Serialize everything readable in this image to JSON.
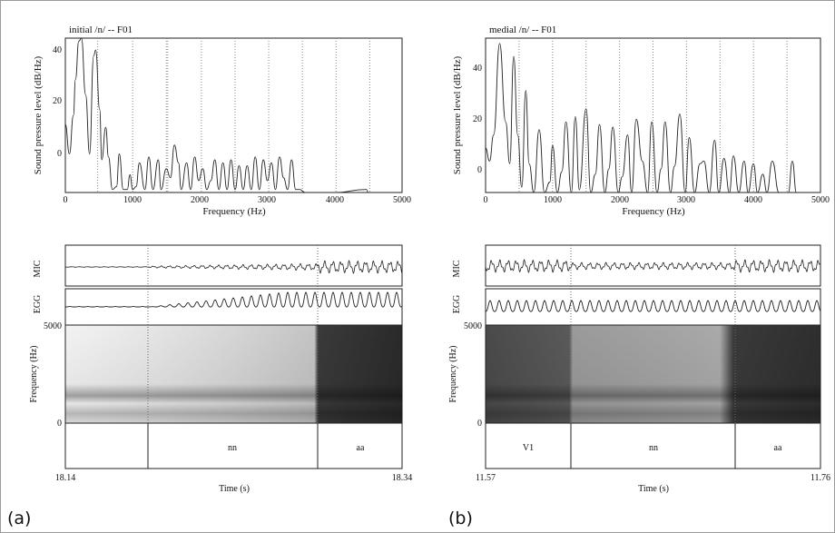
{
  "panels": [
    {
      "letter": "(a)",
      "spectrum": {
        "title": "initial /n/ -- F01",
        "xlabel": "Frequency (Hz)",
        "ylabel": "Sound pressure level (dB/Hz)",
        "xlim": [
          0,
          5000
        ],
        "ylim": [
          -8,
          44
        ],
        "xticks": [
          "0",
          "1000",
          "2000",
          "3000",
          "4000",
          "5000"
        ],
        "yticks": [
          "0",
          "20",
          "40"
        ]
      },
      "signals": {
        "mic_label": "MIC",
        "egg_label": "EGG",
        "freq_ylabel": "Frequency (Hz)",
        "freq_max": "5000",
        "freq_min": "0",
        "time_label": "Time (s)",
        "t_start": "18.14",
        "t_end": "18.34",
        "segments": [
          "",
          "nn",
          "aa"
        ]
      }
    },
    {
      "letter": "(b)",
      "spectrum": {
        "title": "medial /n/ -- F01",
        "xlabel": "Frequency (Hz)",
        "ylabel": "Sound pressure level (dB/Hz)",
        "xlim": [
          0,
          5000
        ],
        "ylim": [
          -7,
          52
        ],
        "xticks": [
          "0",
          "1000",
          "2000",
          "3000",
          "4000",
          "5000"
        ],
        "yticks": [
          "0",
          "20",
          "40"
        ]
      },
      "signals": {
        "mic_label": "MIC",
        "egg_label": "EGG",
        "freq_ylabel": "Frequency (Hz)",
        "freq_max": "5000",
        "freq_min": "0",
        "time_label": "Time (s)",
        "t_start": "11.57",
        "t_end": "11.76",
        "segments": [
          "V1",
          "nn",
          "aa"
        ]
      }
    }
  ],
  "chart_data": [
    {
      "type": "line",
      "title": "initial /n/ -- F01",
      "xlabel": "Frequency (Hz)",
      "ylabel": "Sound pressure level (dB/Hz)",
      "xlim": [
        0,
        5000
      ],
      "ylim": [
        -8,
        44
      ],
      "grid": "vertical dotted at formant/harmonic positions",
      "x": [
        0,
        60,
        120,
        150,
        200,
        240,
        300,
        360,
        420,
        450,
        510,
        540,
        600,
        640,
        700,
        760,
        800,
        860,
        920,
        960,
        1000,
        1050,
        1100,
        1180,
        1240,
        1300,
        1380,
        1420,
        1500,
        1560,
        1620,
        1680,
        1720,
        1800,
        1860,
        1920,
        1980,
        2040,
        2100,
        2160,
        2220,
        2280,
        2340,
        2400,
        2460,
        2520,
        2580,
        2640,
        2700,
        2760,
        2820,
        2880,
        2940,
        3000,
        3060,
        3120,
        3180,
        3240,
        3300,
        3360,
        3420,
        3480,
        3560,
        4000,
        4470,
        4520,
        4570
      ],
      "values": [
        15,
        5,
        18,
        30,
        43,
        44,
        25,
        5,
        38,
        40,
        20,
        3,
        14,
        4,
        -7,
        -6,
        5,
        -7,
        -7,
        -2,
        -7,
        -6,
        2,
        -7,
        4,
        -7,
        3,
        -7,
        0,
        -3,
        8,
        2,
        -7,
        2,
        -7,
        4,
        -4,
        0,
        -7,
        -4,
        3,
        -7,
        2,
        -7,
        3,
        -7,
        1,
        -7,
        1,
        -7,
        4,
        -7,
        3,
        -4,
        2,
        -7,
        4,
        -3,
        -7,
        3,
        -7,
        -7,
        -8,
        -8,
        -7,
        -10,
        -8
      ],
      "note": "fine harmonic ripple omitted; values approximate"
    },
    {
      "type": "line",
      "title": "medial /n/ -- F01",
      "xlabel": "Frequency (Hz)",
      "ylabel": "Sound pressure level (dB/Hz)",
      "xlim": [
        0,
        5000
      ],
      "ylim": [
        -7,
        52
      ],
      "x": [
        0,
        60,
        120,
        210,
        300,
        360,
        420,
        480,
        540,
        600,
        650,
        720,
        800,
        880,
        960,
        1000,
        1070,
        1140,
        1200,
        1280,
        1340,
        1400,
        1500,
        1570,
        1640,
        1700,
        1780,
        1840,
        1900,
        1980,
        2040,
        2120,
        2180,
        2250,
        2340,
        2420,
        2480,
        2560,
        2620,
        2680,
        2760,
        2820,
        2900,
        2980,
        3040,
        3120,
        3200,
        3260,
        3340,
        3420,
        3480,
        3560,
        3640,
        3700,
        3780,
        3860,
        3920,
        4000,
        4060,
        4140,
        4200,
        4280,
        4380,
        4520,
        4580,
        4640
      ],
      "values": [
        10,
        5,
        15,
        50,
        20,
        4,
        45,
        15,
        -5,
        32,
        4,
        -7,
        17,
        -7,
        -3,
        11,
        -7,
        1,
        20,
        -7,
        22,
        -6,
        25,
        -7,
        0,
        19,
        -7,
        2,
        18,
        -7,
        -1,
        15,
        -7,
        21,
        5,
        -7,
        20,
        -7,
        2,
        20,
        -7,
        3,
        23,
        -7,
        14,
        -7,
        4,
        5,
        -7,
        13,
        -7,
        6,
        -7,
        7,
        -7,
        5,
        -7,
        4,
        -7,
        0,
        -7,
        5,
        -7,
        -7,
        5,
        -7
      ],
      "note": "values approximate"
    }
  ]
}
